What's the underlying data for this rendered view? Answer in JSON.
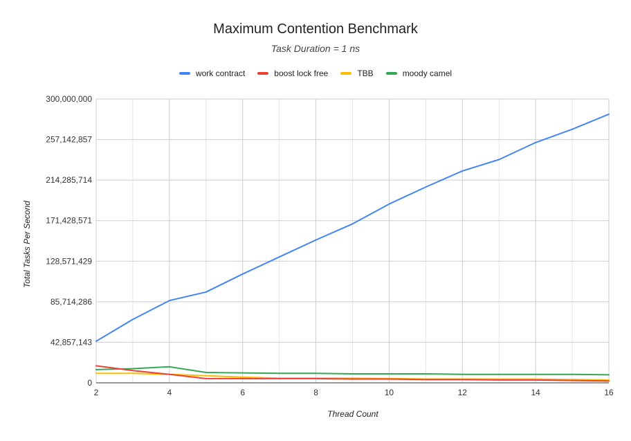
{
  "chart_data": {
    "type": "line",
    "title": "Maximum Contention Benchmark",
    "subtitle": "Task Duration = 1 ns",
    "xlabel": "Thread Count",
    "ylabel": "Total Tasks Per Second",
    "x": [
      2,
      3,
      4,
      5,
      6,
      7,
      8,
      9,
      10,
      11,
      12,
      13,
      14,
      15,
      16
    ],
    "xticks": [
      "2",
      "4",
      "6",
      "8",
      "10",
      "12",
      "14",
      "16"
    ],
    "xlim": [
      2,
      16
    ],
    "ylim": [
      0,
      300000000
    ],
    "yticks": [
      "0",
      "42,857,143",
      "85,714,286",
      "128,571,429",
      "171,428,571",
      "214,285,714",
      "257,142,857",
      "300,000,000"
    ],
    "grid": true,
    "legend_position": "top",
    "series": [
      {
        "name": "work contract",
        "color": "#4285f4",
        "values": [
          44000000,
          67000000,
          87000000,
          96000000,
          115000000,
          133000000,
          151000000,
          168000000,
          189000000,
          207000000,
          224000000,
          236000000,
          254000000,
          268000000,
          284000000
        ]
      },
      {
        "name": "boost lock free",
        "color": "#ea4335",
        "values": [
          18000000,
          13000000,
          9000000,
          4500000,
          4500000,
          4500000,
          4500000,
          4000000,
          4000000,
          3500000,
          3500000,
          3000000,
          3000000,
          2500000,
          2000000
        ]
      },
      {
        "name": "TBB",
        "color": "#fbbc04",
        "values": [
          10000000,
          10000000,
          9000000,
          7500000,
          6000000,
          5000000,
          5000000,
          5000000,
          4500000,
          4000000,
          4000000,
          4000000,
          4000000,
          3500000,
          3000000
        ]
      },
      {
        "name": "moody camel",
        "color": "#34a853",
        "values": [
          14000000,
          15000000,
          17000000,
          11000000,
          10500000,
          10000000,
          10000000,
          9500000,
          9500000,
          9500000,
          9000000,
          9000000,
          9000000,
          9000000,
          8500000
        ]
      }
    ]
  }
}
